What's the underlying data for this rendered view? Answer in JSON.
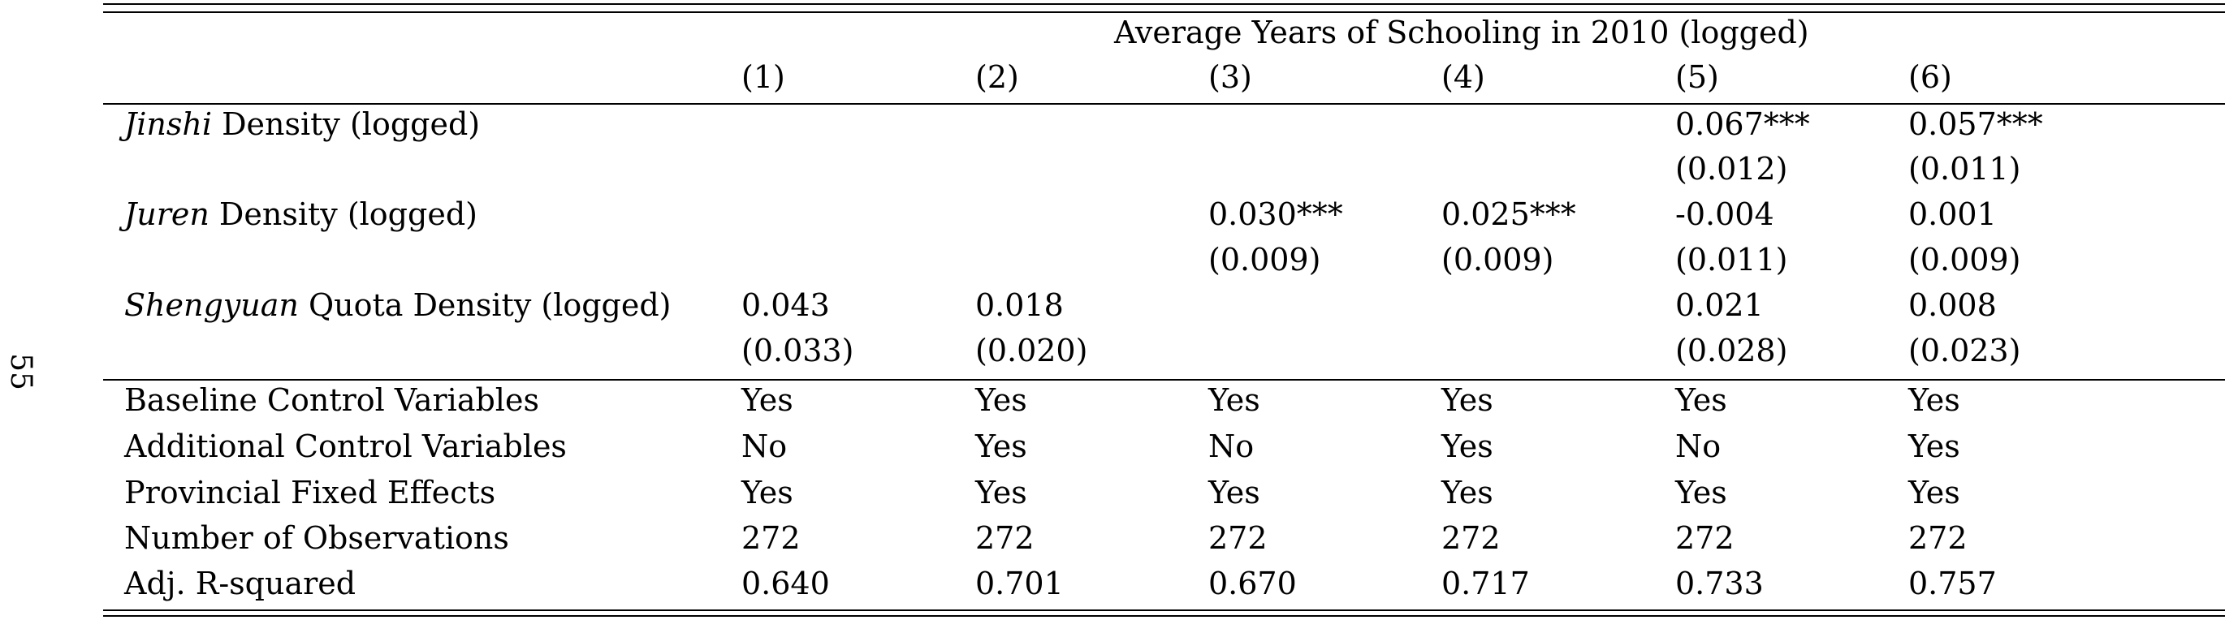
{
  "page_number": "55",
  "table": {
    "super_header": "Average Years of Schooling in 2010 (logged)",
    "column_labels": [
      "(1)",
      "(2)",
      "(3)",
      "(4)",
      "(5)",
      "(6)"
    ],
    "coef_rows": [
      {
        "label_italic": "Jinshi",
        "label_rest": " Density (logged)",
        "estimates": [
          "",
          "",
          "",
          "",
          "0.067***",
          "0.057***"
        ],
        "std_errors": [
          "",
          "",
          "",
          "",
          "(0.012)",
          "(0.011)"
        ]
      },
      {
        "label_italic": "Juren",
        "label_rest": " Density (logged)",
        "estimates": [
          "",
          "",
          "0.030***",
          "0.025***",
          "-0.004",
          "0.001"
        ],
        "std_errors": [
          "",
          "",
          "(0.009)",
          "(0.009)",
          "(0.011)",
          "(0.009)"
        ]
      },
      {
        "label_italic": "Shengyuan",
        "label_rest": " Quota Density (logged)",
        "estimates": [
          "0.043",
          "0.018",
          "",
          "",
          "0.021",
          "0.008"
        ],
        "std_errors": [
          "(0.033)",
          "(0.020)",
          "",
          "",
          "(0.028)",
          "(0.023)"
        ]
      }
    ],
    "stat_rows": [
      {
        "label": "Baseline Control Variables",
        "values": [
          "Yes",
          "Yes",
          "Yes",
          "Yes",
          "Yes",
          "Yes"
        ]
      },
      {
        "label": "Additional Control Variables",
        "values": [
          "No",
          "Yes",
          "No",
          "Yes",
          "No",
          "Yes"
        ]
      },
      {
        "label": "Provincial Fixed Effects",
        "values": [
          "Yes",
          "Yes",
          "Yes",
          "Yes",
          "Yes",
          "Yes"
        ]
      },
      {
        "label": "Number of Observations",
        "values": [
          "272",
          "272",
          "272",
          "272",
          "272",
          "272"
        ]
      },
      {
        "label": "Adj. R-squared",
        "values": [
          "0.640",
          "0.701",
          "0.670",
          "0.717",
          "0.733",
          "0.757"
        ]
      }
    ]
  }
}
